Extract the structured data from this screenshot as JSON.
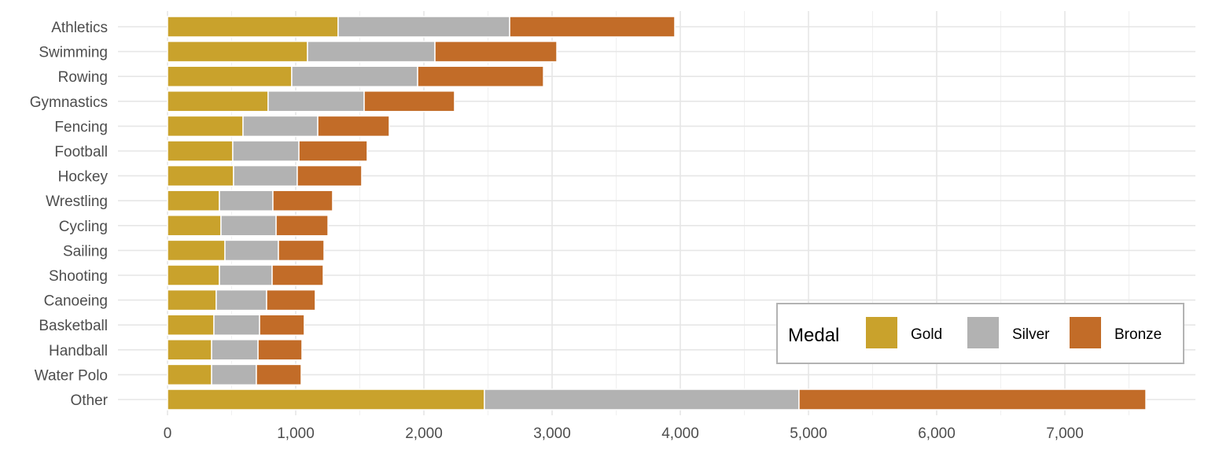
{
  "chart_data": {
    "type": "bar",
    "orientation": "horizontal",
    "stacked": true,
    "title": "",
    "xlabel": "",
    "ylabel": "",
    "xlim": [
      0,
      7900
    ],
    "x_ticks": [
      0,
      1000,
      2000,
      3000,
      4000,
      5000,
      6000,
      7000
    ],
    "x_tick_labels": [
      "0",
      "1,000",
      "2,000",
      "3,000",
      "4,000",
      "5,000",
      "6,000",
      "7,000"
    ],
    "grid": true,
    "categories": [
      "Athletics",
      "Swimming",
      "Rowing",
      "Gymnastics",
      "Fencing",
      "Football",
      "Hockey",
      "Wrestling",
      "Cycling",
      "Sailing",
      "Shooting",
      "Canoeing",
      "Basketball",
      "Handball",
      "Water Polo",
      "Other"
    ],
    "series": [
      {
        "name": "Gold",
        "color": "#C9A22C",
        "values": [
          1331,
          1092,
          969,
          785,
          589,
          509,
          515,
          405,
          417,
          448,
          405,
          380,
          362,
          344,
          344,
          2472
        ]
      },
      {
        "name": "Silver",
        "color": "#B2B2B2",
        "values": [
          1338,
          994,
          982,
          749,
          583,
          516,
          497,
          417,
          430,
          417,
          411,
          393,
          356,
          362,
          349,
          2454
        ]
      },
      {
        "name": "Bronze",
        "color": "#C26C28",
        "values": [
          1288,
          951,
          982,
          705,
          558,
          533,
          503,
          466,
          405,
          356,
          399,
          380,
          349,
          343,
          350,
          2706
        ]
      }
    ],
    "legend": {
      "title": "Medal",
      "position": "bottom-right",
      "entries": [
        "Gold",
        "Silver",
        "Bronze"
      ]
    }
  }
}
